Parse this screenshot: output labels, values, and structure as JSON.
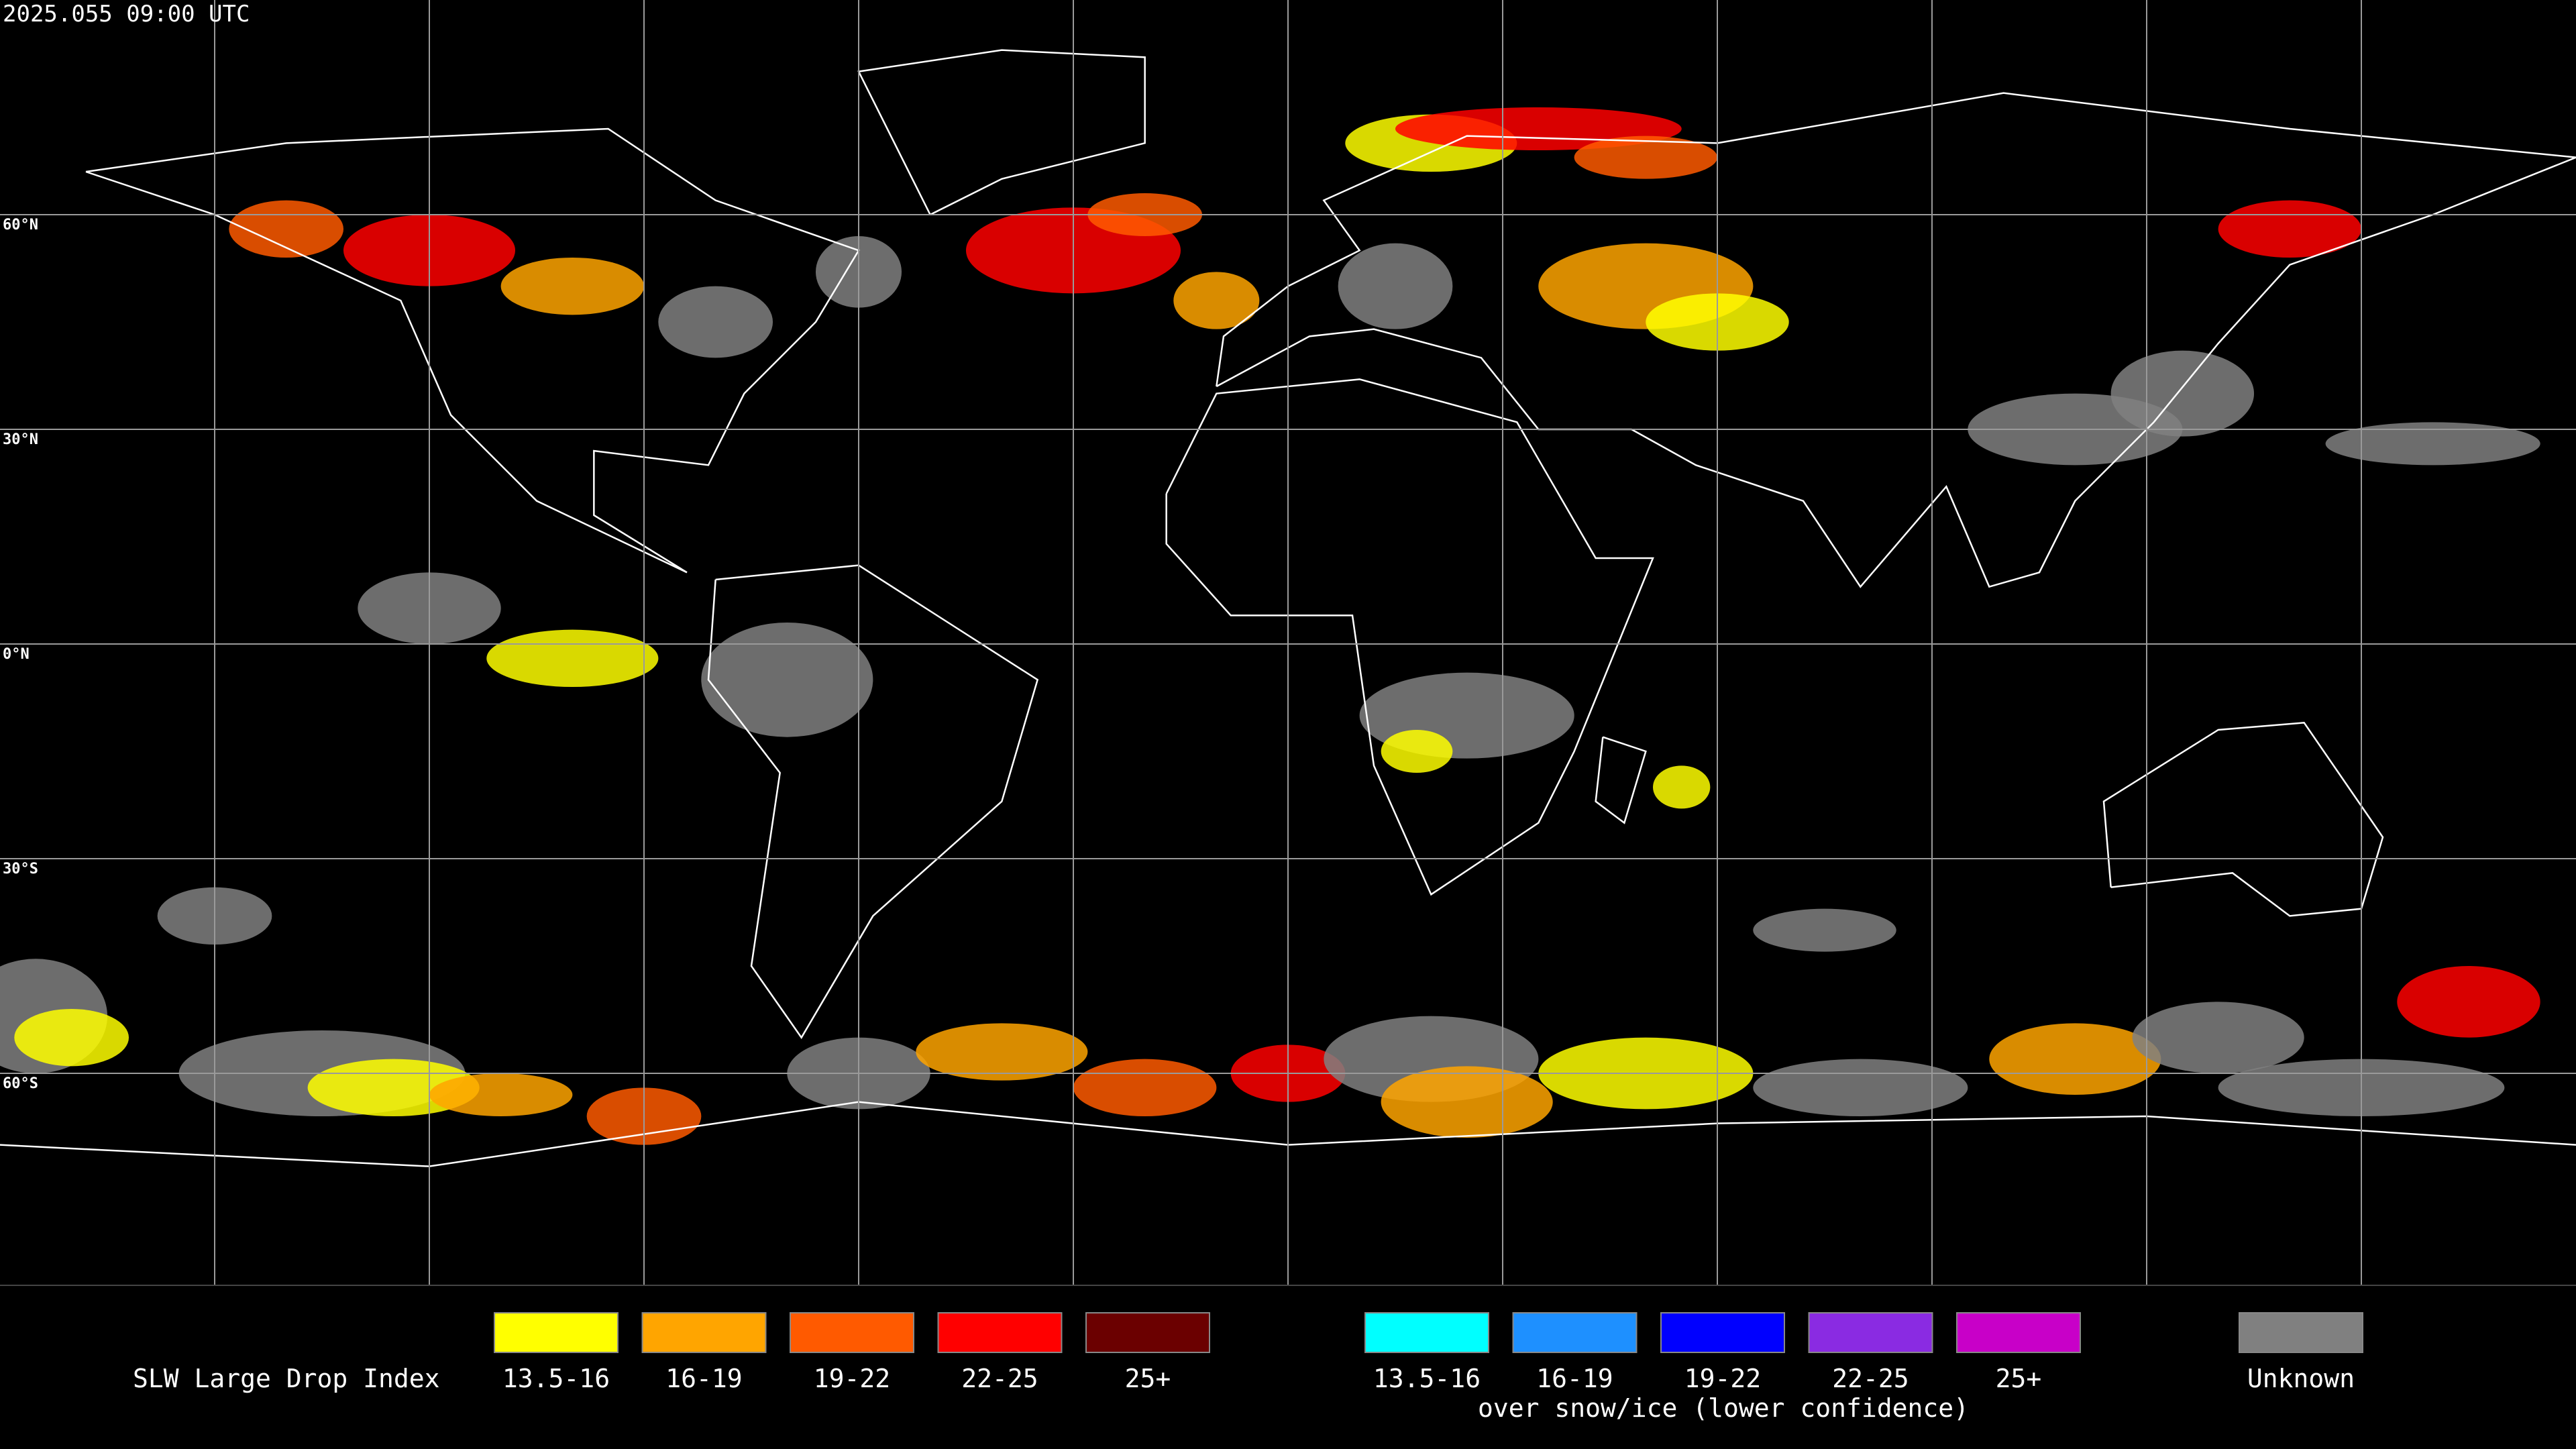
{
  "timestamp": "2025.055 09:00 UTC",
  "latitude_labels": [
    "60°N",
    "30°N",
    "0°N",
    "30°S",
    "60°S"
  ],
  "legend": {
    "title": "SLW Large Drop Index",
    "groups": [
      {
        "items": [
          {
            "label": "13.5-16",
            "color": "#ffff00"
          },
          {
            "label": "16-19",
            "color": "#ffa500"
          },
          {
            "label": "19-22",
            "color": "#ff5a00"
          },
          {
            "label": "22-25",
            "color": "#ff0000"
          },
          {
            "label": "25+",
            "color": "#6b0000"
          }
        ]
      },
      {
        "items": [
          {
            "label": "13.5-16",
            "color": "#00ffff"
          },
          {
            "label": "16-19",
            "color": "#1e90ff"
          },
          {
            "label": "19-22",
            "color": "#0000ff"
          },
          {
            "label": "22-25",
            "color": "#8a2be2"
          },
          {
            "label": "25+",
            "color": "#c800c8"
          }
        ],
        "caption": "over snow/ice (lower confidence)"
      }
    ],
    "unknown": {
      "label": "Unknown",
      "color": "#808080"
    }
  }
}
